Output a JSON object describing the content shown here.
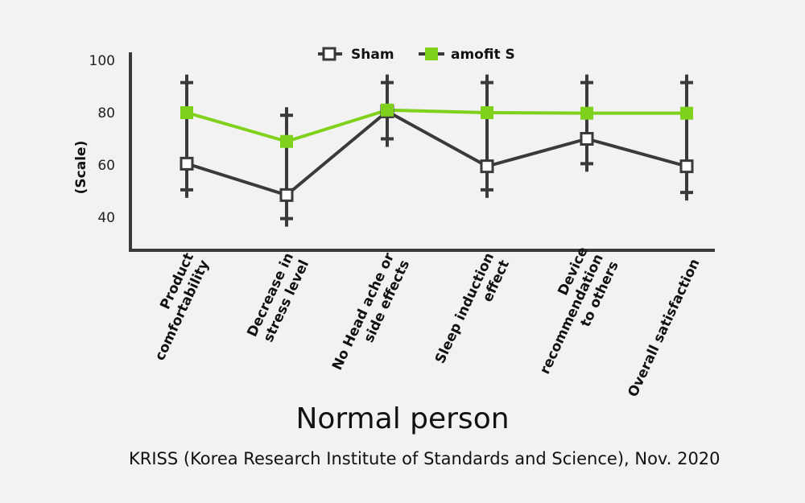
{
  "chart_data": {
    "type": "line",
    "title": "Normal person",
    "ylabel": "(Scale)",
    "xlabel": "",
    "ylim": [
      30,
      100
    ],
    "yticks": [
      40,
      60,
      80,
      100
    ],
    "grid": false,
    "legend_position": "top-center",
    "categories": [
      [
        "Product",
        "comfortability"
      ],
      [
        "Decrease in",
        "stress level"
      ],
      [
        "No Head ache or",
        "side effects"
      ],
      [
        "Sleep induction",
        "effect"
      ],
      [
        "Device",
        "recommendation",
        "to others"
      ],
      [
        "Overall satisfaction"
      ]
    ],
    "series": [
      {
        "name": "Sham",
        "values": [
          60.5,
          48.5,
          80.5,
          59.5,
          70,
          59.5
        ],
        "error_low": [
          50.5,
          39.5,
          70,
          50.5,
          60.5,
          49.5
        ],
        "error_high": [
          91.5,
          79,
          91.5,
          91.5,
          91.5,
          91.5
        ],
        "color": "#3a3a3a",
        "marker": "hollow-square"
      },
      {
        "name": "amofit S",
        "values": [
          80,
          69,
          81,
          80,
          79.8,
          79.8
        ],
        "color": "#7fd11b",
        "marker": "filled-square"
      }
    ]
  },
  "source": "KRISS (Korea Research Institute of Standards and Science), Nov. 2020"
}
